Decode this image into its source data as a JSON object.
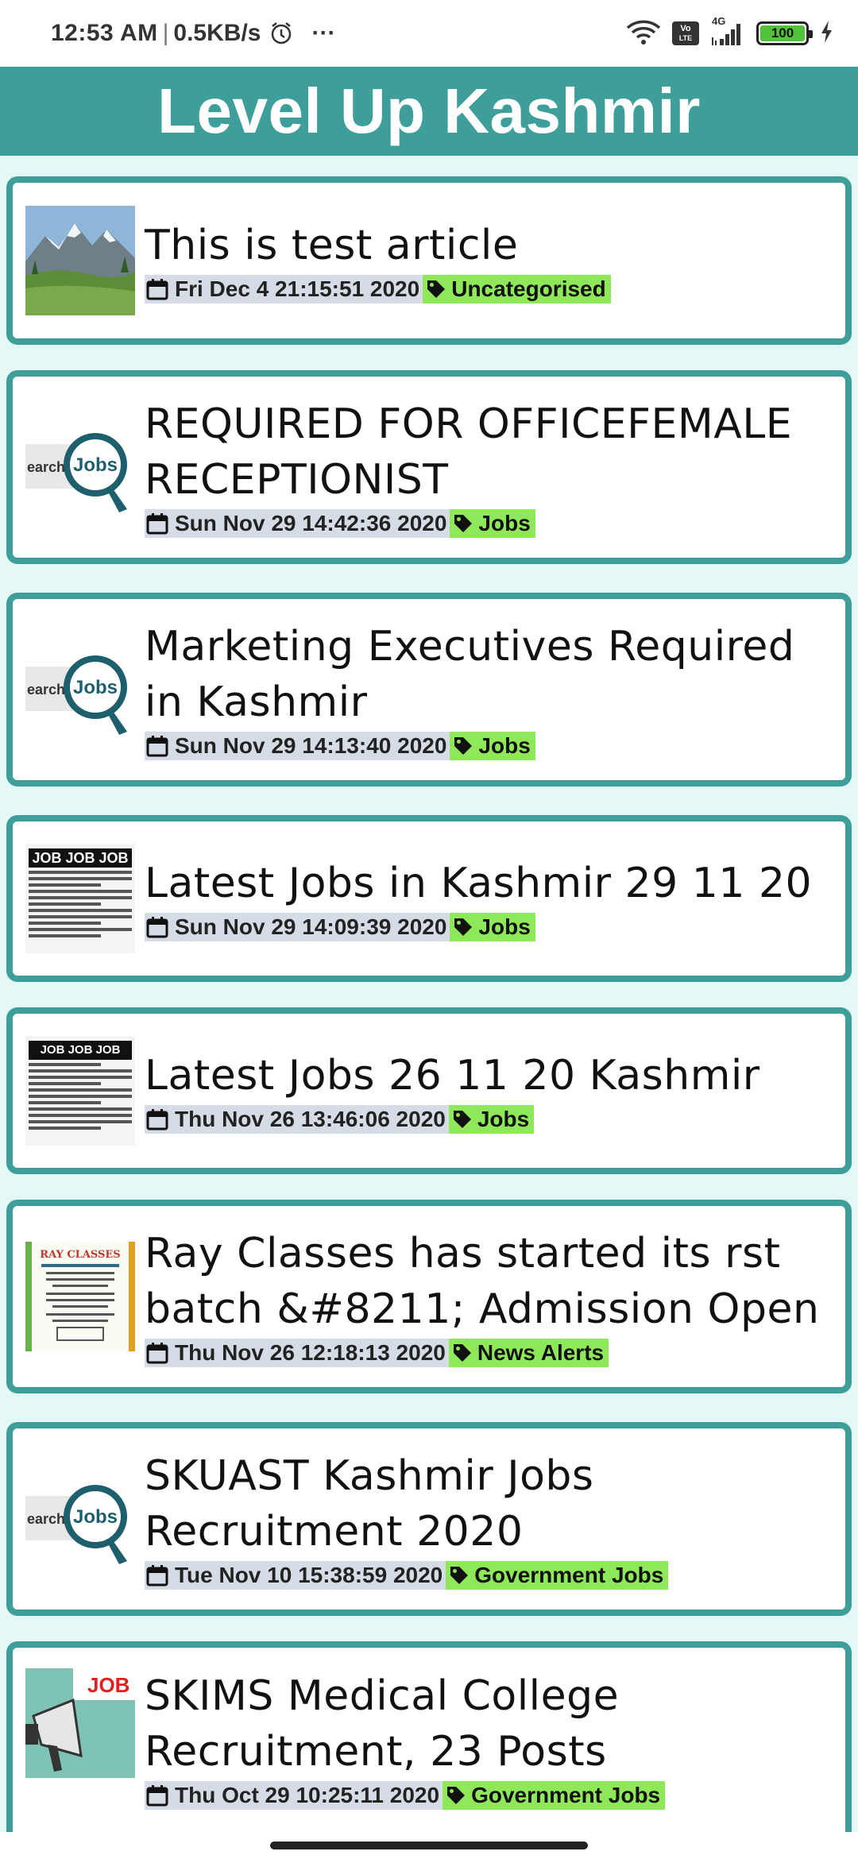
{
  "status_bar": {
    "time": "12:53 AM",
    "separator": "|",
    "speed": "0.5KB/s",
    "more": "···",
    "volte_top": "Vo",
    "volte_bottom": "LTE",
    "network": "4G",
    "battery": "100"
  },
  "header": {
    "title": "Level Up Kashmir"
  },
  "articles": [
    {
      "title": "This is test article",
      "date": "Fri Dec  4 21:15:51 2020",
      "category": "Uncategorised",
      "thumb": "mountain-landscape"
    },
    {
      "title": "REQUIRED FOR OFFICEFEMALE RECEPTIONIST",
      "date": "Sun Nov 29 14:42:36 2020",
      "category": "Jobs",
      "thumb": "jobs-magnifier"
    },
    {
      "title": "Marketing Executives Required in Kashmir",
      "date": "Sun Nov 29 14:13:40 2020",
      "category": "Jobs",
      "thumb": "jobs-magnifier"
    },
    {
      "title": "Latest Jobs in Kashmir 29 11 20",
      "date": "Sun Nov 29 14:09:39 2020",
      "category": "Jobs",
      "thumb": "job-ad-clipping"
    },
    {
      "title": "Latest Jobs 26 11 20 Kashmir",
      "date": "Thu Nov 26 13:46:06 2020",
      "category": "Jobs",
      "thumb": "job-ad-clipping"
    },
    {
      "title": "Ray Classes has started its rst batch &#8211; Admission Open",
      "date": "Thu Nov 26 12:18:13 2020",
      "category": "News Alerts",
      "thumb": "ray-classes-poster"
    },
    {
      "title": "SKUAST Kashmir Jobs Recruitment 2020",
      "date": "Tue Nov 10 15:38:59 2020",
      "category": "Government Jobs",
      "thumb": "jobs-magnifier"
    },
    {
      "title": "SKIMS Medical College Recruitment, 23 Posts",
      "date": "Thu Oct 29 10:25:11 2020",
      "category": "Government Jobs",
      "thumb": "megaphone-jobs"
    }
  ],
  "thumb_text": {
    "search": "earch",
    "jobs": "Jobs",
    "job_head": "JOB JOB JOB",
    "ray": "RAY CLASSES",
    "job_short": "JOB"
  },
  "colors": {
    "accent": "#3e9e99",
    "background": "#e4f8f8",
    "date_bg": "#d6dce6",
    "tag_bg": "#8fe85a"
  }
}
